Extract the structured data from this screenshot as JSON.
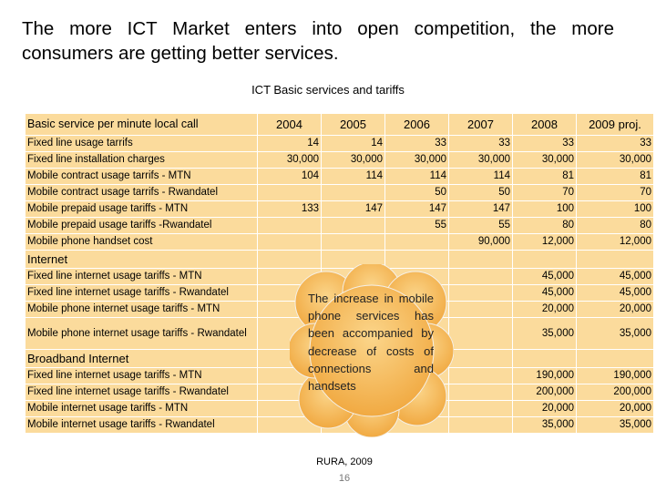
{
  "slide": {
    "title": "The more ICT Market enters into open competition, the more consumers are getting better services.",
    "subtitle": "ICT Basic services and tariffs",
    "source": "RURA, 2009",
    "page_number": "16"
  },
  "table": {
    "headers": [
      "Basic service per minute local call",
      "2004",
      "2005",
      "2006",
      "2007",
      "2008",
      "2009 proj."
    ],
    "rows": [
      {
        "label": "Fixed line usage tarrifs",
        "values": [
          "14",
          "14",
          "33",
          "33",
          "33",
          "33"
        ]
      },
      {
        "label": "Fixed line installation charges",
        "values": [
          "30,000",
          "30,000",
          "30,000",
          "30,000",
          "30,000",
          "30,000"
        ]
      },
      {
        "label": "Mobile contract usage tarrifs - MTN",
        "values": [
          "104",
          "114",
          "114",
          "114",
          "81",
          "81"
        ]
      },
      {
        "label": "Mobile contract usage tarrifs - Rwandatel",
        "values": [
          "",
          "",
          "50",
          "50",
          "70",
          "70"
        ]
      },
      {
        "label": "Mobile prepaid usage tariffs - MTN",
        "values": [
          "133",
          "147",
          "147",
          "147",
          "100",
          "100"
        ]
      },
      {
        "label": "Mobile prepaid usage tariffs -Rwandatel",
        "values": [
          "",
          "",
          "55",
          "55",
          "80",
          "80"
        ]
      },
      {
        "label": "Mobile phone handset cost",
        "values": [
          "",
          "",
          "",
          "90,000",
          "12,000",
          "12,000"
        ]
      },
      {
        "label": "Internet",
        "section": true,
        "values": [
          "",
          "",
          "",
          "",
          "",
          ""
        ]
      },
      {
        "label": "Fixed line internet usage tariffs - MTN",
        "values": [
          "",
          "",
          "",
          "",
          "45,000",
          "45,000"
        ]
      },
      {
        "label": "Fixed line internet usage tariffs - Rwandatel",
        "values": [
          "",
          "",
          "",
          "",
          "45,000",
          "45,000"
        ]
      },
      {
        "label": "Mobile phone internet usage tariffs - MTN",
        "values": [
          "",
          "",
          "",
          "",
          "20,000",
          "20,000"
        ]
      },
      {
        "label": "Mobile phone internet usage tariffs - Rwandatel",
        "tall": true,
        "values": [
          "",
          "",
          "",
          "",
          "35,000",
          "35,000"
        ]
      },
      {
        "label": "Broadband Internet",
        "section": true,
        "values": [
          "",
          "",
          "",
          "",
          "",
          ""
        ]
      },
      {
        "label": "Fixed line internet usage tariffs - MTN",
        "values": [
          "",
          "",
          "",
          "",
          "190,000",
          "190,000"
        ]
      },
      {
        "label": "Fixed line internet usage tariffs - Rwandatel",
        "values": [
          "",
          "",
          "",
          "",
          "200,000",
          "200,000"
        ]
      },
      {
        "label": "Mobile internet usage tariffs - MTN",
        "values": [
          "",
          "",
          "",
          "",
          "20,000",
          "20,000"
        ]
      },
      {
        "label": "Mobile internet usage tariffs - Rwandatel",
        "values": [
          "",
          "",
          "",
          "",
          "35,000",
          "35,000"
        ]
      }
    ]
  },
  "callout": {
    "text": "The increase in mobile phone services has been accompanied by decrease of costs of connections and handsets"
  },
  "colors": {
    "table_fill": "#fbdb9c",
    "cloud_fill": "#f6b245"
  }
}
